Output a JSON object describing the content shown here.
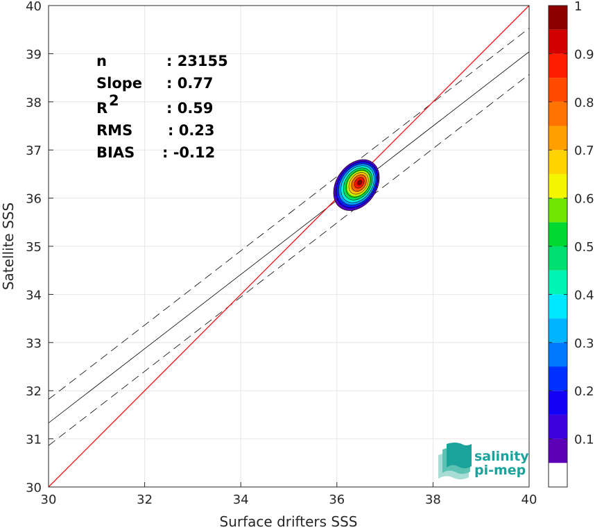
{
  "chart_data": {
    "type": "scatter",
    "subtype": "density-contour",
    "xlabel": "Surface drifters SSS",
    "ylabel": "Satellite SSS",
    "xlim": [
      30,
      40
    ],
    "ylim": [
      30,
      40
    ],
    "xticks": [
      "30",
      "32",
      "34",
      "36",
      "38",
      "40"
    ],
    "yticks": [
      "30",
      "31",
      "32",
      "33",
      "34",
      "35",
      "36",
      "37",
      "38",
      "39",
      "40"
    ],
    "grid": true,
    "stats": [
      {
        "label": "n",
        "value": ": 23155"
      },
      {
        "label": "Slope",
        "value": ": 0.77"
      },
      {
        "label": "R",
        "sup": "2",
        "value": ": 0.59"
      },
      {
        "label": "RMS",
        "value": ": 0.23"
      },
      {
        "label": "BIAS",
        "value": ": -0.12"
      }
    ],
    "identity_line": {
      "x": [
        30,
        40
      ],
      "y": [
        30,
        40
      ],
      "color": "#ff0000"
    },
    "regression_line": {
      "x": [
        30,
        40
      ],
      "y": [
        31.33,
        39.04
      ],
      "color": "#000000"
    },
    "regression_bands": [
      {
        "x": [
          30,
          40
        ],
        "y": [
          31.82,
          39.53
        ]
      },
      {
        "x": [
          30,
          40
        ],
        "y": [
          30.86,
          38.57
        ]
      }
    ],
    "density_center": {
      "x": 36.45,
      "y": 36.3
    },
    "colorbar": {
      "min": 0,
      "max": 1,
      "ticks": [
        "0.1",
        "0.2",
        "0.3",
        "0.4",
        "0.5",
        "0.6",
        "0.7",
        "0.8",
        "0.9",
        "1"
      ],
      "levels": [
        {
          "from": 0.0,
          "to": 0.05,
          "color": "#ffffff"
        },
        {
          "from": 0.05,
          "to": 0.1,
          "color": "#5b00b7"
        },
        {
          "from": 0.1,
          "to": 0.15,
          "color": "#3b00dc"
        },
        {
          "from": 0.15,
          "to": 0.2,
          "color": "#1400f5"
        },
        {
          "from": 0.2,
          "to": 0.25,
          "color": "#0030ff"
        },
        {
          "from": 0.25,
          "to": 0.3,
          "color": "#0078ff"
        },
        {
          "from": 0.3,
          "to": 0.35,
          "color": "#00b4ff"
        },
        {
          "from": 0.35,
          "to": 0.4,
          "color": "#00e8ff"
        },
        {
          "from": 0.4,
          "to": 0.45,
          "color": "#00f5b4"
        },
        {
          "from": 0.45,
          "to": 0.5,
          "color": "#00e070"
        },
        {
          "from": 0.5,
          "to": 0.55,
          "color": "#00d930"
        },
        {
          "from": 0.55,
          "to": 0.6,
          "color": "#6ee600"
        },
        {
          "from": 0.6,
          "to": 0.65,
          "color": "#f5f500"
        },
        {
          "from": 0.65,
          "to": 0.7,
          "color": "#ffd200"
        },
        {
          "from": 0.7,
          "to": 0.75,
          "color": "#ffa000"
        },
        {
          "from": 0.75,
          "to": 0.8,
          "color": "#ff7300"
        },
        {
          "from": 0.8,
          "to": 0.85,
          "color": "#ff4a00"
        },
        {
          "from": 0.85,
          "to": 0.9,
          "color": "#ff1e00"
        },
        {
          "from": 0.9,
          "to": 0.95,
          "color": "#d20000"
        },
        {
          "from": 0.95,
          "to": 1.0,
          "color": "#8c0000"
        }
      ]
    }
  },
  "logo": {
    "line1": "salinity",
    "line2": "pi-mep",
    "color": "#1aa39a"
  }
}
